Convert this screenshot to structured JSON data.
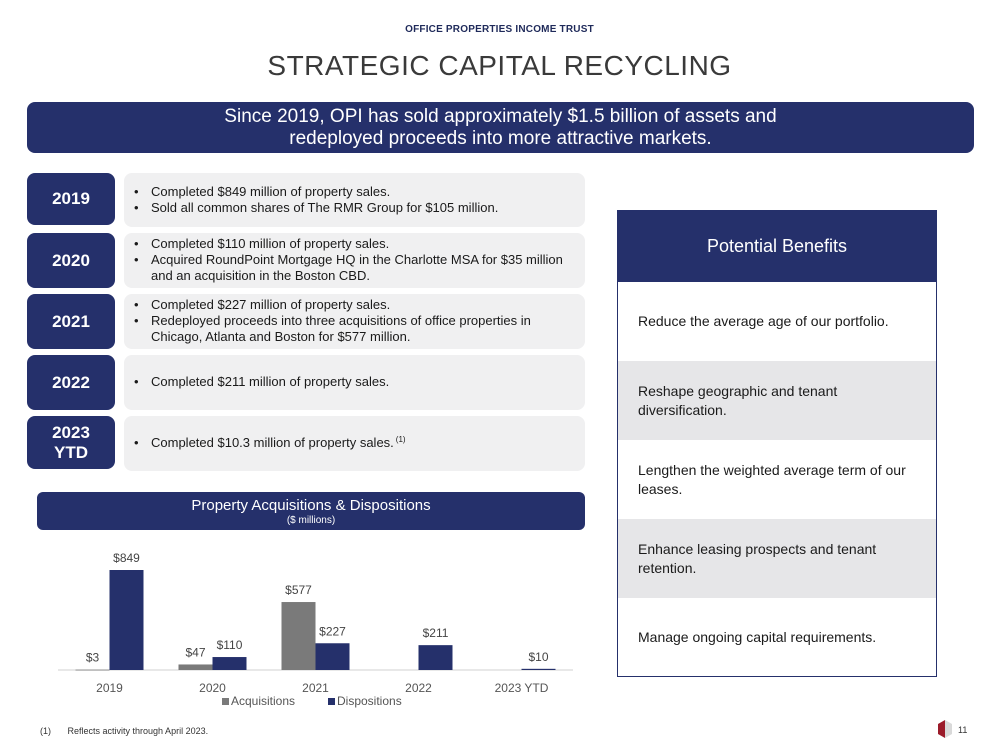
{
  "header": {
    "company": "OFFICE PROPERTIES INCOME TRUST",
    "title": "STRATEGIC CAPITAL RECYCLING"
  },
  "banner": {
    "line1": "Since 2019, OPI has sold approximately $1.5 billion of assets and",
    "line2": "redeployed proceeds into more attractive markets."
  },
  "years": [
    {
      "year": "2019",
      "bullets": [
        "Completed $849 million of property sales.",
        "Sold all common shares of The RMR Group for $105 million."
      ]
    },
    {
      "year": "2020",
      "bullets": [
        "Completed $110 million of property sales.",
        "Acquired RoundPoint Mortgage HQ in the Charlotte MSA for $35 million and an acquisition in the Boston CBD."
      ]
    },
    {
      "year": "2021",
      "bullets": [
        "Completed $227 million of property sales.",
        "Redeployed proceeds into three acquisitions of office properties in Chicago, Atlanta and Boston for $577 million."
      ]
    },
    {
      "year": "2022",
      "bullets": [
        "Completed $211 million of property sales."
      ]
    },
    {
      "year_line1": "2023",
      "year_line2": "YTD",
      "bullets": [
        "Completed $10.3 million of property sales."
      ],
      "footnote_ref": "(1)"
    }
  ],
  "chart_header": {
    "title": "Property Acquisitions & Dispositions",
    "subtitle": "($ millions)"
  },
  "chart_data": {
    "type": "bar",
    "categories": [
      "2019",
      "2020",
      "2021",
      "2022",
      "2023 YTD"
    ],
    "series": [
      {
        "name": "Acquisitions",
        "values": [
          3,
          47,
          577,
          null,
          null
        ],
        "labels": [
          "$3",
          "$47",
          "$577",
          "",
          ""
        ],
        "color": "#7a7a7a"
      },
      {
        "name": "Dispositions",
        "values": [
          849,
          110,
          227,
          211,
          10
        ],
        "labels": [
          "$849",
          "$110",
          "$227",
          "$211",
          "$10"
        ],
        "color": "#25306b"
      }
    ],
    "ylim": [
      0,
      849
    ],
    "legend": "bottom",
    "grid": false
  },
  "benefits": {
    "heading": "Potential Benefits",
    "items": [
      "Reduce the average age of our portfolio.",
      "Reshape geographic and tenant diversification.",
      "Lengthen the weighted average term of our leases.",
      "Enhance leasing prospects and tenant retention.",
      "Manage ongoing capital requirements."
    ]
  },
  "footer": {
    "footnote_num": "(1)",
    "footnote_text": "Reflects activity through April 2023.",
    "page": "11"
  },
  "colors": {
    "navy": "#25306b",
    "gray_bar": "#7a7a7a",
    "row_bg": "#f0f0f1",
    "benefit_alt_bg": "#e6e6e8"
  }
}
